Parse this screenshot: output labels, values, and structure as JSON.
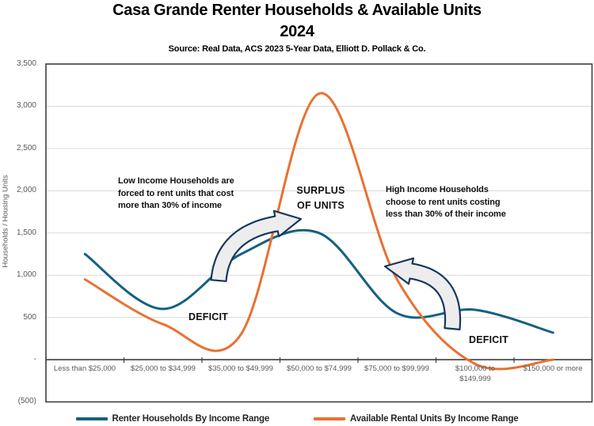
{
  "title": {
    "line1": "Casa Grande Renter Households & Available Units",
    "line2": "2024",
    "source": "Source: Real Data, ACS 2023 5-Year Data, Elliott D. Pollack & Co."
  },
  "y_axis": {
    "title": "Households / Housing Units",
    "tick_labels": [
      "3,500",
      "3,000",
      "2,500",
      "2,000",
      "1,500",
      "1,000",
      "500",
      "-",
      "(500)"
    ]
  },
  "annotations": {
    "low_income": {
      "lines": [
        "Low Income Households are",
        "forced to rent units that cost",
        "more than 30% of income"
      ]
    },
    "surplus": {
      "lines": [
        "SURPLUS",
        "OF UNITS"
      ]
    },
    "high_income": {
      "lines": [
        "High Income Households",
        "choose to rent units costing",
        "less than 30% of their income"
      ]
    },
    "deficit_left": "DEFICIT",
    "deficit_right": "DEFICIT"
  },
  "legend": [
    {
      "label": "Renter Households By Income Range",
      "color": "#156082"
    },
    {
      "label": "Available Rental Units By Income Range",
      "color": "#E97132"
    }
  ],
  "chart_data": {
    "type": "line",
    "smooth": true,
    "title": "Casa Grande Renter Households & Available Units 2024",
    "subtitle": "Source: Real Data, ACS 2023 5-Year Data, Elliott D. Pollack & Co.",
    "xlabel": "",
    "ylabel": "Households / Housing Units",
    "ylim": [
      -500,
      3500
    ],
    "y_tick_step": 500,
    "grid": true,
    "legend_position": "bottom",
    "categories": [
      "Less than $25,000",
      "$25,000 to $34,999",
      "$35,000 to $49,999",
      "$50,000 to $74,999",
      "$75,000 to $99,999",
      "$100,000 to $149,999",
      "$150,000 or more"
    ],
    "series": [
      {
        "name": "Renter Households By Income Range",
        "color": "#156082",
        "values": [
          1250,
          600,
          1250,
          1500,
          550,
          590,
          320
        ]
      },
      {
        "name": "Available Rental Units By Income Range",
        "color": "#E97132",
        "values": [
          950,
          420,
          300,
          3150,
          950,
          -50,
          0
        ]
      }
    ],
    "colors": {
      "gridline": "#D9D9D9",
      "axis": "#3F3F3F",
      "tick_text": "#595959",
      "arrow_fill": "#EDEDED",
      "arrow_outline": "#17375E"
    }
  }
}
